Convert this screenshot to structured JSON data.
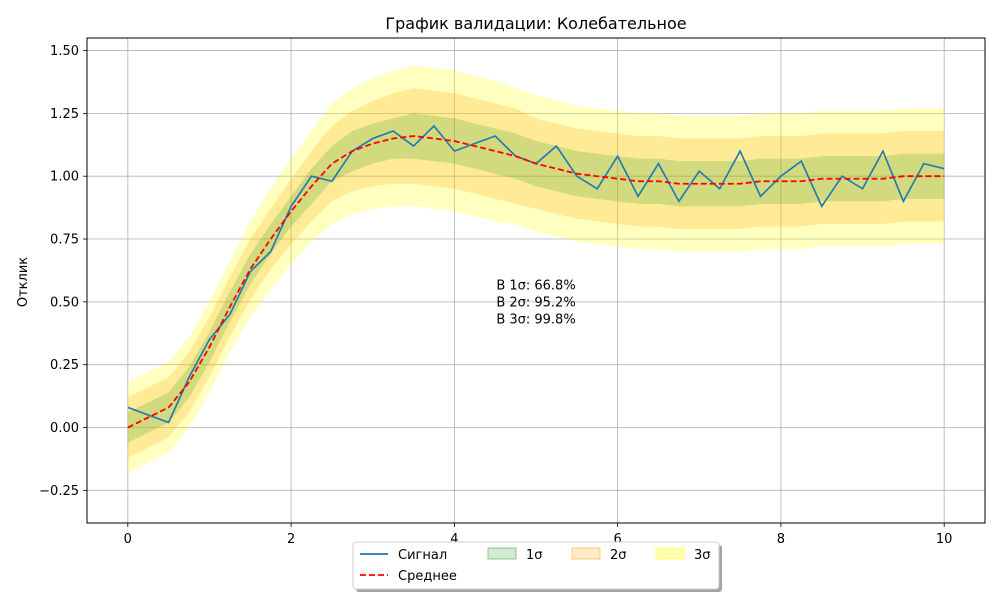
{
  "chart_data": {
    "type": "line",
    "title": "График валидации: Колебательное",
    "xlabel": "",
    "ylabel": "Отклик",
    "xlim": [
      -0.5,
      10.5
    ],
    "ylim": [
      -0.38,
      1.55
    ],
    "xticks": [
      0,
      2,
      4,
      6,
      8,
      10
    ],
    "xtick_labels": [
      "0",
      "2",
      "4",
      "6",
      "8",
      "10"
    ],
    "yticks": [
      -0.25,
      0.0,
      0.25,
      0.5,
      0.75,
      1.0,
      1.25,
      1.5
    ],
    "ytick_labels": [
      "−0.25",
      "0.00",
      "0.25",
      "0.50",
      "0.75",
      "1.00",
      "1.25",
      "1.50"
    ],
    "grid": true,
    "legend_position": "bottom-center",
    "annotation": [
      "В 1σ: 66.8%",
      "В 2σ: 95.2%",
      "В 3σ: 99.8%"
    ],
    "colors": {
      "signal": "#1f77b4",
      "mean": "#ff0000",
      "band_1sigma": "#2ca02c",
      "band_2sigma": "#ffa500",
      "band_3sigma": "#ffff00"
    },
    "x": [
      0.0,
      0.25,
      0.5,
      0.75,
      1.0,
      1.25,
      1.5,
      1.75,
      2.0,
      2.25,
      2.5,
      2.75,
      3.0,
      3.25,
      3.5,
      3.75,
      4.0,
      4.25,
      4.5,
      4.75,
      5.0,
      5.25,
      5.5,
      5.75,
      6.0,
      6.25,
      6.5,
      6.75,
      7.0,
      7.25,
      7.5,
      7.75,
      8.0,
      8.25,
      8.5,
      8.75,
      9.0,
      9.25,
      9.5,
      9.75,
      10.0
    ],
    "series": [
      {
        "name": "Сигнал",
        "values": [
          0.08,
          0.05,
          0.02,
          0.2,
          0.35,
          0.45,
          0.62,
          0.7,
          0.88,
          1.0,
          0.98,
          1.1,
          1.15,
          1.18,
          1.12,
          1.2,
          1.1,
          1.13,
          1.16,
          1.08,
          1.05,
          1.12,
          1.0,
          0.95,
          1.08,
          0.92,
          1.05,
          0.9,
          1.02,
          0.95,
          1.1,
          0.92,
          1.0,
          1.06,
          0.88,
          1.0,
          0.95,
          1.1,
          0.9,
          1.05,
          1.03
        ]
      },
      {
        "name": "Среднее",
        "values": [
          0.0,
          0.04,
          0.08,
          0.18,
          0.32,
          0.48,
          0.63,
          0.75,
          0.86,
          0.96,
          1.05,
          1.1,
          1.13,
          1.15,
          1.16,
          1.15,
          1.14,
          1.12,
          1.1,
          1.08,
          1.05,
          1.03,
          1.01,
          1.0,
          0.99,
          0.98,
          0.98,
          0.97,
          0.97,
          0.97,
          0.97,
          0.98,
          0.98,
          0.98,
          0.99,
          0.99,
          0.99,
          0.99,
          1.0,
          1.0,
          1.0
        ]
      }
    ],
    "bands": [
      {
        "name": "1σ",
        "halfwidth": [
          0.06,
          0.06,
          0.06,
          0.06,
          0.06,
          0.06,
          0.06,
          0.06,
          0.06,
          0.07,
          0.07,
          0.08,
          0.08,
          0.08,
          0.09,
          0.09,
          0.09,
          0.09,
          0.09,
          0.09,
          0.09,
          0.09,
          0.09,
          0.09,
          0.09,
          0.09,
          0.09,
          0.09,
          0.09,
          0.09,
          0.09,
          0.09,
          0.09,
          0.09,
          0.09,
          0.09,
          0.09,
          0.09,
          0.09,
          0.09,
          0.09
        ]
      },
      {
        "name": "2σ",
        "halfwidth": [
          0.12,
          0.12,
          0.12,
          0.12,
          0.12,
          0.12,
          0.12,
          0.12,
          0.13,
          0.14,
          0.15,
          0.16,
          0.17,
          0.18,
          0.19,
          0.19,
          0.19,
          0.19,
          0.19,
          0.19,
          0.18,
          0.18,
          0.18,
          0.18,
          0.18,
          0.18,
          0.18,
          0.18,
          0.18,
          0.18,
          0.18,
          0.18,
          0.18,
          0.18,
          0.18,
          0.18,
          0.18,
          0.18,
          0.18,
          0.18,
          0.18
        ]
      },
      {
        "name": "3σ",
        "halfwidth": [
          0.18,
          0.18,
          0.18,
          0.18,
          0.18,
          0.18,
          0.19,
          0.2,
          0.21,
          0.22,
          0.24,
          0.25,
          0.26,
          0.27,
          0.28,
          0.28,
          0.28,
          0.28,
          0.28,
          0.27,
          0.27,
          0.27,
          0.27,
          0.27,
          0.27,
          0.27,
          0.27,
          0.27,
          0.27,
          0.27,
          0.27,
          0.27,
          0.27,
          0.27,
          0.27,
          0.27,
          0.27,
          0.27,
          0.27,
          0.27,
          0.27
        ]
      }
    ],
    "legend": [
      "Сигнал",
      "Среднее",
      "1σ",
      "2σ",
      "3σ"
    ]
  }
}
